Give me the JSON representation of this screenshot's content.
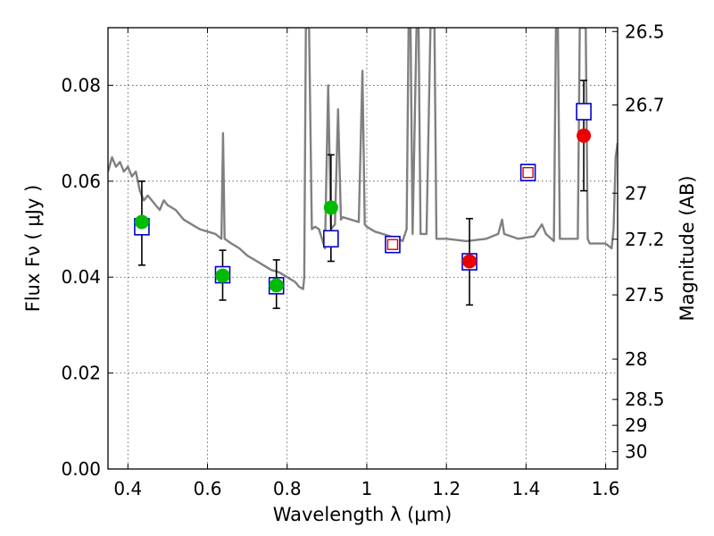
{
  "chart_data": {
    "type": "scatter",
    "title": "",
    "xlabel": "Wavelength  λ (μm)",
    "ylabel": "Flux  Fν  ( μJy )",
    "y2label": "Magnitude (AB)",
    "xlim": [
      0.35,
      1.63
    ],
    "ylim": [
      0.0,
      0.092
    ],
    "grid": true,
    "x_ticks": [
      0.4,
      0.6,
      0.8,
      1.0,
      1.2,
      1.4,
      1.6
    ],
    "x_tick_labels": [
      "0.4",
      "0.6",
      "0.8",
      "1",
      "1.2",
      "1.4",
      "1.6"
    ],
    "y_ticks": [
      0.0,
      0.02,
      0.04,
      0.06,
      0.08
    ],
    "y_tick_labels": [
      "0.00",
      "0.02",
      "0.04",
      "0.06",
      "0.08"
    ],
    "y2_ticks": [
      {
        "label": "26.5",
        "flux": 0.0912
      },
      {
        "label": "26.7",
        "flux": 0.0759
      },
      {
        "label": "27",
        "flux": 0.0575
      },
      {
        "label": "27.2",
        "flux": 0.0479
      },
      {
        "label": "27.5",
        "flux": 0.0363
      },
      {
        "label": "28",
        "flux": 0.0229
      },
      {
        "label": "28.5",
        "flux": 0.0145
      },
      {
        "label": "29",
        "flux": 0.0091
      },
      {
        "label": "30",
        "flux": 0.0036
      }
    ],
    "series": [
      {
        "kind": "line",
        "color": "#808080",
        "points": [
          [
            0.35,
            0.062
          ],
          [
            0.36,
            0.065
          ],
          [
            0.37,
            0.063
          ],
          [
            0.38,
            0.064
          ],
          [
            0.39,
            0.062
          ],
          [
            0.4,
            0.063
          ],
          [
            0.41,
            0.061
          ],
          [
            0.42,
            0.062
          ],
          [
            0.43,
            0.058
          ],
          [
            0.44,
            0.056
          ],
          [
            0.45,
            0.057
          ],
          [
            0.46,
            0.056
          ],
          [
            0.47,
            0.055
          ],
          [
            0.48,
            0.054
          ],
          [
            0.49,
            0.056
          ],
          [
            0.5,
            0.055
          ],
          [
            0.52,
            0.054
          ],
          [
            0.54,
            0.052
          ],
          [
            0.56,
            0.051
          ],
          [
            0.58,
            0.05
          ],
          [
            0.6,
            0.0495
          ],
          [
            0.62,
            0.049
          ],
          [
            0.635,
            0.048
          ],
          [
            0.639,
            0.07
          ],
          [
            0.643,
            0.048
          ],
          [
            0.66,
            0.047
          ],
          [
            0.68,
            0.046
          ],
          [
            0.7,
            0.0445
          ],
          [
            0.72,
            0.0435
          ],
          [
            0.74,
            0.0425
          ],
          [
            0.76,
            0.0415
          ],
          [
            0.78,
            0.041
          ],
          [
            0.8,
            0.04
          ],
          [
            0.82,
            0.039
          ],
          [
            0.83,
            0.038
          ],
          [
            0.84,
            0.0375
          ],
          [
            0.843,
            0.04
          ],
          [
            0.847,
            0.092
          ],
          [
            0.855,
            0.092
          ],
          [
            0.862,
            0.05
          ],
          [
            0.87,
            0.0505
          ],
          [
            0.88,
            0.05
          ],
          [
            0.895,
            0.046
          ],
          [
            0.903,
            0.08
          ],
          [
            0.91,
            0.05
          ],
          [
            0.92,
            0.051
          ],
          [
            0.928,
            0.075
          ],
          [
            0.935,
            0.052
          ],
          [
            0.94,
            0.0525
          ],
          [
            0.96,
            0.052
          ],
          [
            0.98,
            0.0515
          ],
          [
            0.989,
            0.083
          ],
          [
            0.995,
            0.051
          ],
          [
            1.0,
            0.0505
          ],
          [
            1.02,
            0.0495
          ],
          [
            1.04,
            0.049
          ],
          [
            1.06,
            0.0485
          ],
          [
            1.08,
            0.048
          ],
          [
            1.09,
            0.0475
          ],
          [
            1.1,
            0.05
          ],
          [
            1.105,
            0.092
          ],
          [
            1.11,
            0.092
          ],
          [
            1.115,
            0.049
          ],
          [
            1.125,
            0.092
          ],
          [
            1.13,
            0.092
          ],
          [
            1.135,
            0.049
          ],
          [
            1.15,
            0.049
          ],
          [
            1.16,
            0.092
          ],
          [
            1.17,
            0.092
          ],
          [
            1.175,
            0.048
          ],
          [
            1.2,
            0.048
          ],
          [
            1.25,
            0.0475
          ],
          [
            1.3,
            0.048
          ],
          [
            1.33,
            0.049
          ],
          [
            1.34,
            0.052
          ],
          [
            1.345,
            0.049
          ],
          [
            1.38,
            0.048
          ],
          [
            1.42,
            0.0485
          ],
          [
            1.44,
            0.051
          ],
          [
            1.45,
            0.049
          ],
          [
            1.47,
            0.0475
          ],
          [
            1.475,
            0.092
          ],
          [
            1.48,
            0.092
          ],
          [
            1.485,
            0.048
          ],
          [
            1.53,
            0.048
          ],
          [
            1.535,
            0.092
          ],
          [
            1.55,
            0.092
          ],
          [
            1.555,
            0.048
          ],
          [
            1.56,
            0.047
          ],
          [
            1.6,
            0.047
          ],
          [
            1.615,
            0.046
          ],
          [
            1.62,
            0.05
          ],
          [
            1.625,
            0.065
          ],
          [
            1.63,
            0.068
          ]
        ]
      },
      {
        "kind": "error_bars",
        "color": "#000000",
        "points": [
          {
            "x": 0.435,
            "low": 0.0425,
            "high": 0.06
          },
          {
            "x": 0.638,
            "low": 0.0352,
            "high": 0.0456
          },
          {
            "x": 0.773,
            "low": 0.0335,
            "high": 0.0436
          },
          {
            "x": 0.91,
            "low": 0.0433,
            "high": 0.0655
          },
          {
            "x": 1.258,
            "low": 0.0342,
            "high": 0.0522
          },
          {
            "x": 1.545,
            "low": 0.058,
            "high": 0.081
          }
        ]
      },
      {
        "kind": "open_square",
        "color": "#0000cc",
        "points": [
          [
            0.435,
            0.0505
          ],
          [
            0.638,
            0.0405
          ],
          [
            0.773,
            0.0382
          ],
          [
            0.91,
            0.048
          ],
          [
            1.065,
            0.0468
          ],
          [
            1.258,
            0.0432
          ],
          [
            1.405,
            0.0618
          ],
          [
            1.545,
            0.0745
          ]
        ]
      },
      {
        "kind": "small_open_square",
        "color": "#dd0000",
        "points": [
          [
            1.065,
            0.0468
          ],
          [
            1.405,
            0.0618
          ]
        ]
      },
      {
        "kind": "filled_circle",
        "color": "#00bb00",
        "points": [
          [
            0.435,
            0.0515
          ],
          [
            0.638,
            0.0403
          ],
          [
            0.773,
            0.0383
          ],
          [
            0.91,
            0.0545
          ]
        ]
      },
      {
        "kind": "filled_circle",
        "color": "#ee0000",
        "points": [
          [
            1.258,
            0.0433
          ],
          [
            1.545,
            0.0695
          ]
        ]
      }
    ]
  }
}
